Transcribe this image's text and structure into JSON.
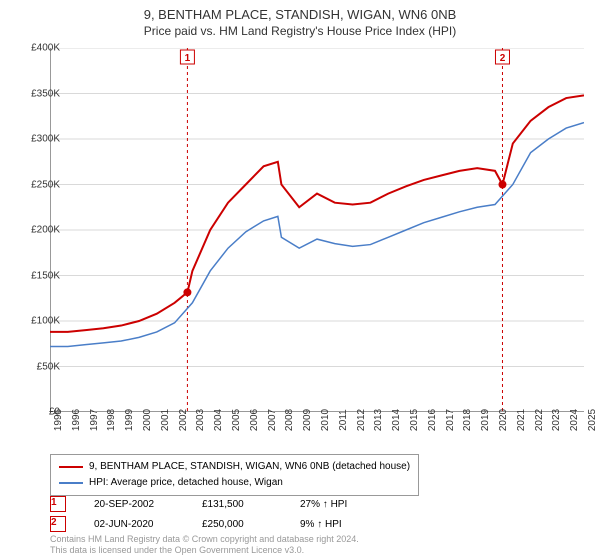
{
  "title": "9, BENTHAM PLACE, STANDISH, WIGAN, WN6 0NB",
  "subtitle": "Price paid vs. HM Land Registry's House Price Index (HPI)",
  "chart": {
    "type": "line",
    "background_color": "#ffffff",
    "grid_color": "#d9d9d9",
    "axis_color": "#333333",
    "xlim": [
      1995,
      2025
    ],
    "ylim": [
      0,
      400000
    ],
    "ytick_step": 50000,
    "ytick_labels": [
      "£0",
      "£50K",
      "£100K",
      "£150K",
      "£200K",
      "£250K",
      "£300K",
      "£350K",
      "£400K"
    ],
    "xtick_step": 1,
    "xtick_labels": [
      "1995",
      "1996",
      "1997",
      "1998",
      "1999",
      "2000",
      "2001",
      "2002",
      "2003",
      "2004",
      "2005",
      "2006",
      "2007",
      "2008",
      "2009",
      "2010",
      "2011",
      "2012",
      "2013",
      "2014",
      "2015",
      "2016",
      "2017",
      "2018",
      "2019",
      "2020",
      "2021",
      "2022",
      "2023",
      "2024",
      "2025"
    ],
    "series": [
      {
        "name": "property",
        "label": "9, BENTHAM PLACE, STANDISH, WIGAN, WN6 0NB (detached house)",
        "color": "#cc0000",
        "line_width": 2,
        "data": [
          [
            1995,
            88000
          ],
          [
            1996,
            88000
          ],
          [
            1997,
            90000
          ],
          [
            1998,
            92000
          ],
          [
            1999,
            95000
          ],
          [
            2000,
            100000
          ],
          [
            2001,
            108000
          ],
          [
            2002,
            120000
          ],
          [
            2002.72,
            131500
          ],
          [
            2003,
            155000
          ],
          [
            2004,
            200000
          ],
          [
            2005,
            230000
          ],
          [
            2006,
            250000
          ],
          [
            2007,
            270000
          ],
          [
            2007.8,
            275000
          ],
          [
            2008,
            250000
          ],
          [
            2009,
            225000
          ],
          [
            2010,
            240000
          ],
          [
            2011,
            230000
          ],
          [
            2012,
            228000
          ],
          [
            2013,
            230000
          ],
          [
            2014,
            240000
          ],
          [
            2015,
            248000
          ],
          [
            2016,
            255000
          ],
          [
            2017,
            260000
          ],
          [
            2018,
            265000
          ],
          [
            2019,
            268000
          ],
          [
            2020,
            265000
          ],
          [
            2020.42,
            250000
          ],
          [
            2021,
            295000
          ],
          [
            2022,
            320000
          ],
          [
            2023,
            335000
          ],
          [
            2024,
            345000
          ],
          [
            2025,
            348000
          ]
        ]
      },
      {
        "name": "hpi",
        "label": "HPI: Average price, detached house, Wigan",
        "color": "#4a7ec8",
        "line_width": 1.5,
        "data": [
          [
            1995,
            72000
          ],
          [
            1996,
            72000
          ],
          [
            1997,
            74000
          ],
          [
            1998,
            76000
          ],
          [
            1999,
            78000
          ],
          [
            2000,
            82000
          ],
          [
            2001,
            88000
          ],
          [
            2002,
            98000
          ],
          [
            2003,
            120000
          ],
          [
            2004,
            155000
          ],
          [
            2005,
            180000
          ],
          [
            2006,
            198000
          ],
          [
            2007,
            210000
          ],
          [
            2007.8,
            215000
          ],
          [
            2008,
            192000
          ],
          [
            2009,
            180000
          ],
          [
            2010,
            190000
          ],
          [
            2011,
            185000
          ],
          [
            2012,
            182000
          ],
          [
            2013,
            184000
          ],
          [
            2014,
            192000
          ],
          [
            2015,
            200000
          ],
          [
            2016,
            208000
          ],
          [
            2017,
            214000
          ],
          [
            2018,
            220000
          ],
          [
            2019,
            225000
          ],
          [
            2020,
            228000
          ],
          [
            2021,
            250000
          ],
          [
            2022,
            285000
          ],
          [
            2023,
            300000
          ],
          [
            2024,
            312000
          ],
          [
            2025,
            318000
          ]
        ]
      }
    ],
    "markers": [
      {
        "num": "1",
        "x": 2002.72,
        "y": 131500,
        "color": "#cc0000",
        "line_color": "#cc0000"
      },
      {
        "num": "2",
        "x": 2020.42,
        "y": 250000,
        "color": "#cc0000",
        "line_color": "#cc0000"
      }
    ],
    "marker_line_dash": "3,3",
    "label_fontsize": 10
  },
  "legend": {
    "border_color": "#999999",
    "items": [
      {
        "color": "#cc0000",
        "label": "9, BENTHAM PLACE, STANDISH, WIGAN, WN6 0NB (detached house)"
      },
      {
        "color": "#4a7ec8",
        "label": "HPI: Average price, detached house, Wigan"
      }
    ]
  },
  "marker_table": {
    "rows": [
      {
        "num": "1",
        "color": "#cc0000",
        "date": "20-SEP-2002",
        "price": "£131,500",
        "delta": "27% ↑ HPI"
      },
      {
        "num": "2",
        "color": "#cc0000",
        "date": "02-JUN-2020",
        "price": "£250,000",
        "delta": "9% ↑ HPI"
      }
    ]
  },
  "footer": {
    "line1": "Contains HM Land Registry data © Crown copyright and database right 2024.",
    "line2": "This data is licensed under the Open Government Licence v3.0."
  }
}
